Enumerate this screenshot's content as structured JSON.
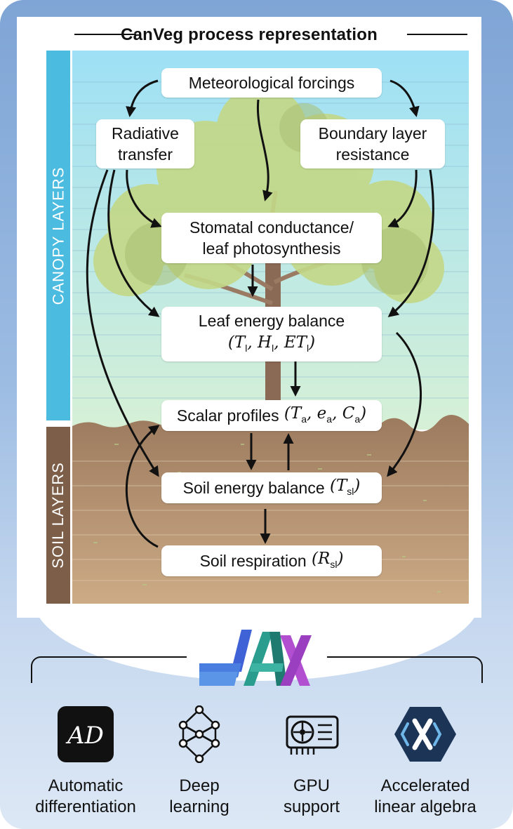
{
  "title": "CanVeg process representation",
  "side_labels": {
    "canopy": "CANOPY LAYERS",
    "soil": "SOIL LAYERS"
  },
  "boxes": {
    "meteorological": "Meteorological forcings",
    "radiative_1": "Radiative",
    "radiative_2": "transfer",
    "boundary_1": "Boundary layer",
    "boundary_2": "resistance",
    "stomatal_1": "Stomatal conductance/",
    "stomatal_2": "leaf photosynthesis",
    "leaf_energy": "Leaf energy balance",
    "leaf_energy_vars": {
      "open": "(",
      "T": "T",
      "T_sub": "l",
      "sep1": ", ",
      "H": "H",
      "H_sub": "l",
      "sep2": ", ",
      "ET": "ET",
      "ET_sub": "l",
      "close": ")"
    },
    "scalar": "Scalar profiles",
    "scalar_vars": {
      "open": " (",
      "T": "T",
      "T_sub": "a",
      "sep1": ", ",
      "e": "e",
      "e_sub": "a",
      "sep2": ", ",
      "C": "C",
      "C_sub": "a",
      "close": ")"
    },
    "soil_energy": "Soil energy balance",
    "soil_energy_vars": {
      "open": " (",
      "T": "T",
      "T_sub": "sl",
      "close": ")"
    },
    "soil_resp": "Soil respiration",
    "soil_resp_vars": {
      "open": " (",
      "R": "R",
      "R_sub": "sl",
      "close": ")"
    }
  },
  "tools": [
    {
      "label_1": "Automatic",
      "label_2": "differentiation",
      "icon": "ad-icon",
      "icon_text": "AD"
    },
    {
      "label_1": "Deep",
      "label_2": "learning",
      "icon": "neural-network-icon"
    },
    {
      "label_1": "GPU",
      "label_2": "support",
      "icon": "gpu-icon"
    },
    {
      "label_1": "Accelerated",
      "label_2": "linear algebra",
      "icon": "xla-icon"
    }
  ],
  "colors": {
    "canopy_bar": "#4bbbe0",
    "soil_bar": "#7d5e49",
    "sky_top": "#9ee0f6",
    "sky_bottom": "#d6f0d6",
    "soil": "#a07f62",
    "foliage": "#c3d888",
    "jax_blue": "#3f63d6",
    "jax_teal": "#2a9d8f",
    "jax_purple": "#b14fd0"
  }
}
